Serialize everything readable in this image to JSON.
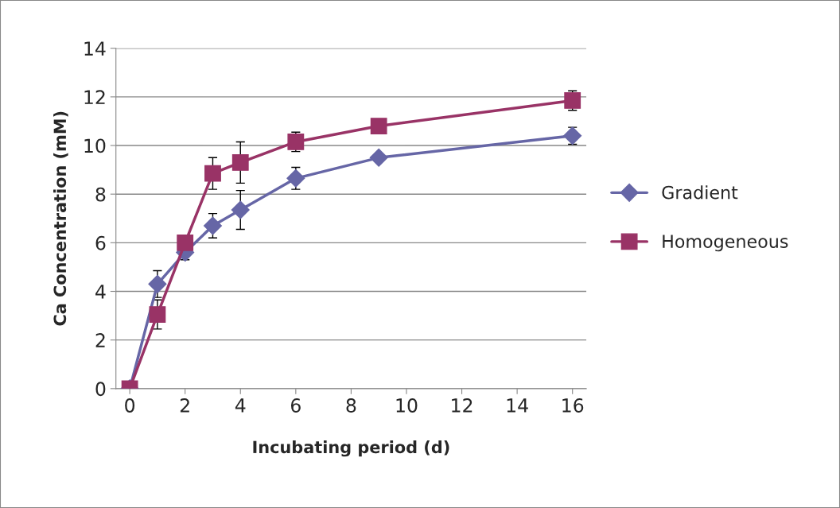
{
  "chart_data": {
    "type": "line",
    "xlabel": "Incubating period (d)",
    "ylabel": "Ca Concentration (mM)",
    "xlim": [
      -0.5,
      16.5
    ],
    "xticks": [
      0,
      2,
      4,
      6,
      8,
      10,
      12,
      14,
      16
    ],
    "ylim": [
      0,
      14
    ],
    "yticks": [
      0,
      2,
      4,
      6,
      8,
      10,
      12,
      14
    ],
    "grid": "y",
    "legend": "right",
    "series": [
      {
        "name": "Gradient",
        "color": "#6666a6",
        "marker": "diamond",
        "x": [
          0,
          1,
          2,
          3,
          4,
          6,
          9,
          16
        ],
        "values": [
          0,
          4.3,
          5.6,
          6.7,
          7.35,
          8.65,
          9.5,
          10.4
        ],
        "errors": [
          null,
          0.55,
          0.3,
          0.5,
          0.8,
          0.45,
          null,
          0.35
        ]
      },
      {
        "name": "Homogeneous",
        "color": "#993366",
        "marker": "square",
        "x": [
          0,
          1,
          2,
          3,
          4,
          6,
          9,
          16
        ],
        "values": [
          0,
          3.05,
          6.0,
          8.85,
          9.3,
          10.15,
          10.8,
          11.85
        ],
        "errors": [
          null,
          0.6,
          null,
          0.65,
          0.85,
          0.4,
          null,
          0.4
        ]
      }
    ]
  }
}
